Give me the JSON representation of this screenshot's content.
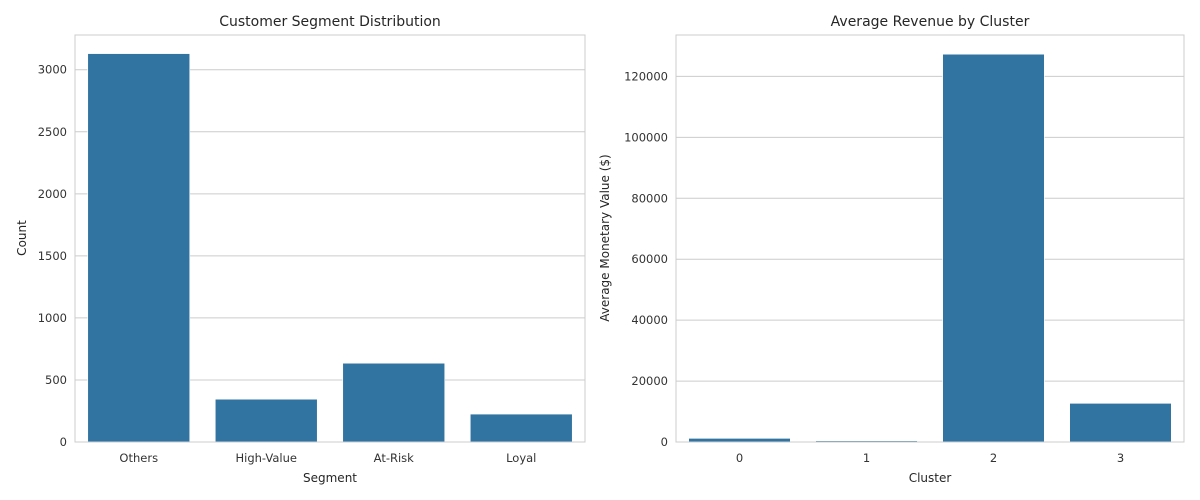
{
  "colors": {
    "bar": "#3274a1",
    "grid": "#cccccc",
    "text": "#262626"
  },
  "chart_data": [
    {
      "type": "bar",
      "title": "Customer Segment Distribution",
      "xlabel": "Segment",
      "ylabel": "Count",
      "categories": [
        "Others",
        "High-Value",
        "At-Risk",
        "Loyal"
      ],
      "values": [
        3130,
        345,
        635,
        225
      ],
      "ylim": [
        0,
        3280
      ],
      "yticks": [
        0,
        500,
        1000,
        1500,
        2000,
        2500,
        3000
      ],
      "ytick_labels": [
        "0",
        "500",
        "1000",
        "1500",
        "2000",
        "2500",
        "3000"
      ],
      "grid": true
    },
    {
      "type": "bar",
      "title": "Average Revenue by Cluster",
      "xlabel": "Cluster",
      "ylabel": "Average Monetary Value ($)",
      "categories": [
        "0",
        "1",
        "2",
        "3"
      ],
      "values": [
        1200,
        400,
        127300,
        12700
      ],
      "ylim": [
        0,
        133600
      ],
      "yticks": [
        0,
        20000,
        40000,
        60000,
        80000,
        100000,
        120000
      ],
      "ytick_labels": [
        "0",
        "20000",
        "40000",
        "60000",
        "80000",
        "100000",
        "120000"
      ],
      "grid": true
    }
  ]
}
